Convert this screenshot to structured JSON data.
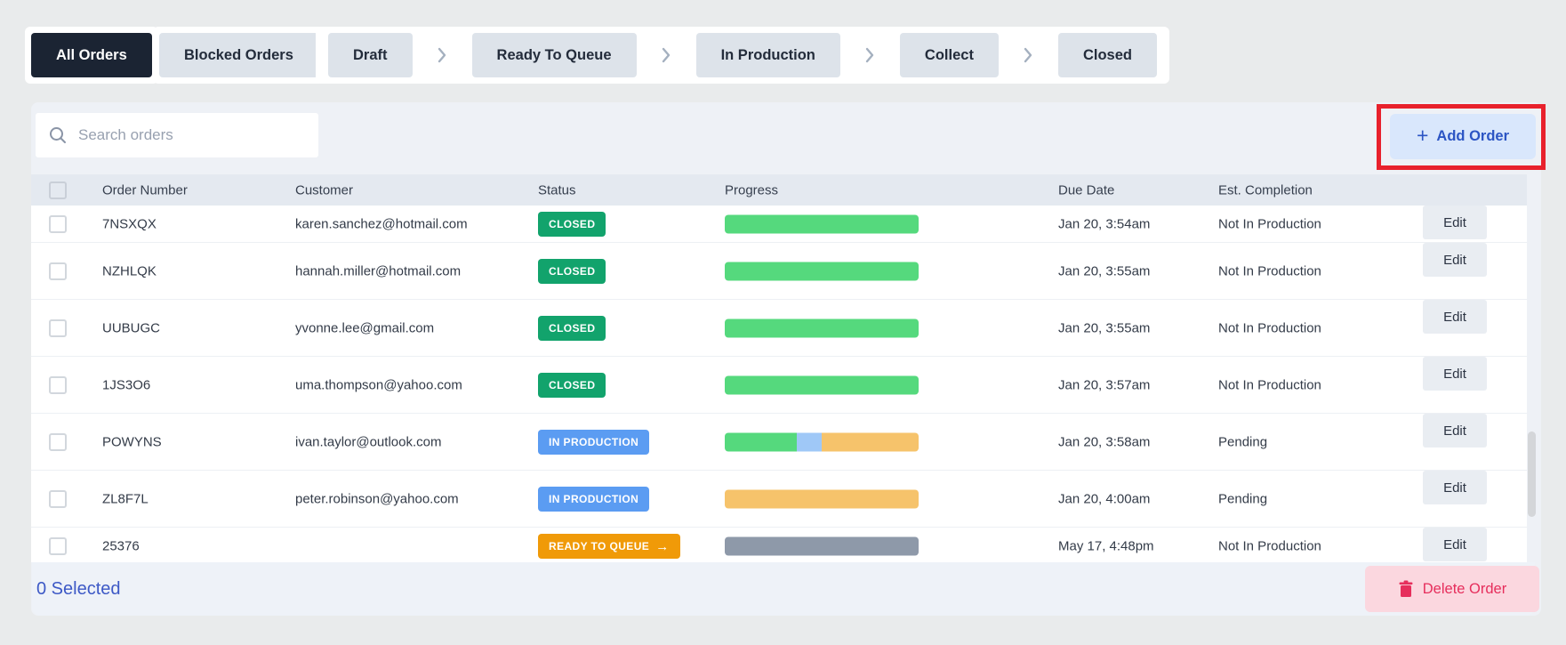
{
  "tabs": {
    "all_orders": "All Orders",
    "blocked_orders": "Blocked Orders"
  },
  "workflow": [
    "Draft",
    "Ready To Queue",
    "In Production",
    "Collect",
    "Closed"
  ],
  "search": {
    "placeholder": "Search orders"
  },
  "add_order": {
    "label": "Add Order",
    "plus": "+"
  },
  "table": {
    "columns": [
      "Order Number",
      "Customer",
      "Status",
      "Progress",
      "Due Date",
      "Est. Completion"
    ],
    "edit_label": "Edit",
    "rows": [
      {
        "order": "7NSXQX",
        "customer": "karen.sanchez@hotmail.com",
        "status": "CLOSED",
        "status_type": "closed",
        "progress": [
          {
            "color": "green",
            "pct": 100
          }
        ],
        "due": "Jan 20, 3:54am",
        "est": "Not In Production"
      },
      {
        "order": "NZHLQK",
        "customer": "hannah.miller@hotmail.com",
        "status": "CLOSED",
        "status_type": "closed",
        "progress": [
          {
            "color": "green",
            "pct": 100
          }
        ],
        "due": "Jan 20, 3:55am",
        "est": "Not In Production"
      },
      {
        "order": "UUBUGC",
        "customer": "yvonne.lee@gmail.com",
        "status": "CLOSED",
        "status_type": "closed",
        "progress": [
          {
            "color": "green",
            "pct": 100
          }
        ],
        "due": "Jan 20, 3:55am",
        "est": "Not In Production"
      },
      {
        "order": "1JS3O6",
        "customer": "uma.thompson@yahoo.com",
        "status": "CLOSED",
        "status_type": "closed",
        "progress": [
          {
            "color": "green",
            "pct": 100
          }
        ],
        "due": "Jan 20, 3:57am",
        "est": "Not In Production"
      },
      {
        "order": "POWYNS",
        "customer": "ivan.taylor@outlook.com",
        "status": "IN PRODUCTION",
        "status_type": "in_production",
        "progress": [
          {
            "color": "green",
            "pct": 37
          },
          {
            "color": "blue",
            "pct": 13
          },
          {
            "color": "orange",
            "pct": 50
          }
        ],
        "due": "Jan 20, 3:58am",
        "est": "Pending"
      },
      {
        "order": "ZL8F7L",
        "customer": "peter.robinson@yahoo.com",
        "status": "IN PRODUCTION",
        "status_type": "in_production",
        "progress": [
          {
            "color": "orange",
            "pct": 100
          }
        ],
        "due": "Jan 20, 4:00am",
        "est": "Pending"
      },
      {
        "order": "25376",
        "customer": "",
        "status": "READY TO QUEUE",
        "status_type": "ready",
        "status_arrow": "→",
        "progress": [
          {
            "color": "gray",
            "pct": 100
          }
        ],
        "due": "May 17, 4:48pm",
        "est": "Not In Production"
      }
    ]
  },
  "footer": {
    "selected": "0 Selected",
    "delete_label": "Delete Order"
  },
  "colors": {
    "annotation_red": "#e8212c",
    "accent_blue": "#2c55c4",
    "status": {
      "closed": "#12a36c",
      "in_production": "#5b9cf2",
      "ready": "#f09a08"
    },
    "progress": {
      "green": "#55d97d",
      "blue": "#9fc8f7",
      "orange": "#f6c36b",
      "gray": "#8e99a9"
    }
  }
}
